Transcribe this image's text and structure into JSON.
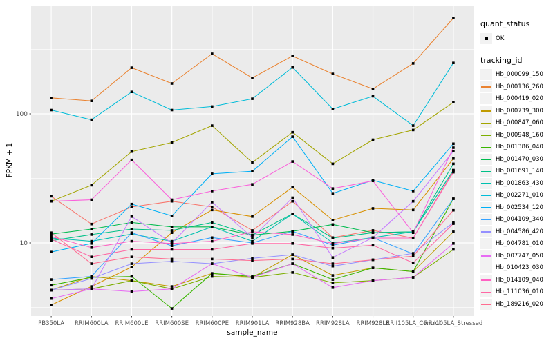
{
  "chart_data": {
    "type": "line",
    "title": "",
    "xlabel": "sample_name",
    "ylabel": "FPKM + 1",
    "y_scale": "log10",
    "y_ticks": [
      10,
      100
    ],
    "y_minor_ticks": [
      3.16,
      31.6,
      316
    ],
    "ylim": [
      2.7,
      690
    ],
    "grid": "on",
    "legend_position": "right",
    "categories": [
      "PB350LA",
      "RRIM600LA",
      "RRIM600LE",
      "RRIM600SE",
      "RRIM600PE",
      "RRIM901LA",
      "RRIM928BA",
      "RRIM928LA",
      "RRIM928LE",
      "RRII105LA_Control",
      "RRII105LA_Stressed"
    ],
    "series": [
      {
        "name": "Hb_000099_150",
        "color": "#F8766D",
        "values": [
          23,
          14,
          19,
          21,
          19,
          12.5,
          21,
          11,
          12.5,
          10.9,
          36
        ]
      },
      {
        "name": "Hb_000136_260",
        "color": "#EA8331",
        "values": [
          133,
          126,
          228,
          172,
          292,
          190,
          281,
          204,
          156,
          246,
          553
        ]
      },
      {
        "name": "Hb_000419_020",
        "color": "#D89000",
        "values": [
          3.3,
          4.6,
          6.5,
          12,
          18,
          16,
          27,
          15,
          18.5,
          18,
          45
        ]
      },
      {
        "name": "Hb_000739_300",
        "color": "#C09B00",
        "values": [
          4.3,
          5.5,
          5.1,
          4.6,
          5.8,
          5.4,
          8.1,
          5.6,
          6.4,
          6.0,
          12.2
        ]
      },
      {
        "name": "Hb_000847_060",
        "color": "#A3A500",
        "values": [
          21,
          28,
          51,
          60,
          81,
          42,
          72,
          41,
          63,
          75,
          123
        ]
      },
      {
        "name": "Hb_000948_160",
        "color": "#7CAE00",
        "values": [
          4.3,
          4.4,
          5.1,
          4.4,
          5.5,
          5.4,
          5.9,
          4.9,
          5.1,
          5.4,
          8.9
        ]
      },
      {
        "name": "Hb_001386_040",
        "color": "#39B600",
        "values": [
          4.7,
          5.4,
          5.5,
          3.1,
          5.8,
          5.5,
          6.9,
          5.2,
          6.4,
          6.0,
          22
        ]
      },
      {
        "name": "Hb_001470_030",
        "color": "#00BB4E",
        "values": [
          11.7,
          12.8,
          14.4,
          13.3,
          13.3,
          11.5,
          12.3,
          13.9,
          12.0,
          12.2,
          36.6
        ]
      },
      {
        "name": "Hb_001691_140",
        "color": "#00C087",
        "values": [
          10.4,
          11.6,
          12.8,
          12.5,
          14.4,
          11.5,
          16.8,
          10.9,
          12.0,
          12.2,
          41
        ]
      },
      {
        "name": "Hb_001863_430",
        "color": "#00C0AF",
        "values": [
          10.9,
          10.3,
          11.7,
          10.3,
          13.3,
          10.3,
          16.8,
          10.0,
          11.0,
          12.2,
          36.6
        ]
      },
      {
        "name": "Hb_002271_010",
        "color": "#00BCD8",
        "values": [
          107,
          90,
          148,
          107,
          114,
          131,
          229,
          109,
          137,
          81,
          248
        ]
      },
      {
        "name": "Hb_002534_120",
        "color": "#00B0F6",
        "values": [
          8.5,
          9.9,
          20,
          16.2,
          34.3,
          35.9,
          66.5,
          24.2,
          30.6,
          25.2,
          58.7
        ]
      },
      {
        "name": "Hb_004109_340",
        "color": "#35A2FF",
        "values": [
          5.2,
          5.5,
          12,
          9.5,
          11,
          10,
          12.3,
          9.6,
          11,
          8.2,
          22
        ]
      },
      {
        "name": "Hb_004586_420",
        "color": "#9590FF",
        "values": [
          4.3,
          5.3,
          6.9,
          7.2,
          6.9,
          7.6,
          8.1,
          6.6,
          7.4,
          8.3,
          14.4
        ]
      },
      {
        "name": "Hb_004781_010",
        "color": "#C77CFF",
        "values": [
          4.3,
          4.4,
          16,
          10,
          20.7,
          11,
          22.4,
          7.7,
          11,
          21,
          51.4
        ]
      },
      {
        "name": "Hb_007747_050",
        "color": "#E76BF3",
        "values": [
          3.7,
          4.4,
          4.2,
          4.4,
          6.9,
          5.4,
          6.9,
          4.5,
          5.1,
          5.4,
          9.9
        ]
      },
      {
        "name": "Hb_010423_030",
        "color": "#FA62DB",
        "values": [
          21,
          21.6,
          44,
          21.6,
          25.2,
          28.4,
          42.7,
          26.4,
          30.2,
          12,
          54.7
        ]
      },
      {
        "name": "Hb_014109_040",
        "color": "#FF61C3",
        "values": [
          11.2,
          9.2,
          10.3,
          9.9,
          10.3,
          12.2,
          11.6,
          9.9,
          10.9,
          10.9,
          35.3
        ]
      },
      {
        "name": "Hb_111036_010",
        "color": "#FF67A4",
        "values": [
          10.7,
          7.8,
          8.9,
          8.9,
          8.9,
          9.9,
          9.9,
          9.1,
          9.6,
          7.0,
          14.1
        ]
      },
      {
        "name": "Hb_189216_020",
        "color": "#FF6C90",
        "values": [
          12,
          6.9,
          7.8,
          7.5,
          7.5,
          7.3,
          7.5,
          6.9,
          7.4,
          7.9,
          17.9
        ]
      }
    ]
  },
  "legend": {
    "quant_status": {
      "title": "quant_status",
      "items": [
        {
          "label": "OK",
          "shape": "point",
          "color": "#000000"
        }
      ]
    },
    "tracking": {
      "title": "tracking_id"
    }
  },
  "colors": {
    "panel_bg": "#EBEBEB",
    "grid": "#FFFFFF",
    "axis_text": "#4D4D4D",
    "tick": "#333333",
    "marker": "#000000",
    "legend_key_bg": "#F2F2F2"
  }
}
